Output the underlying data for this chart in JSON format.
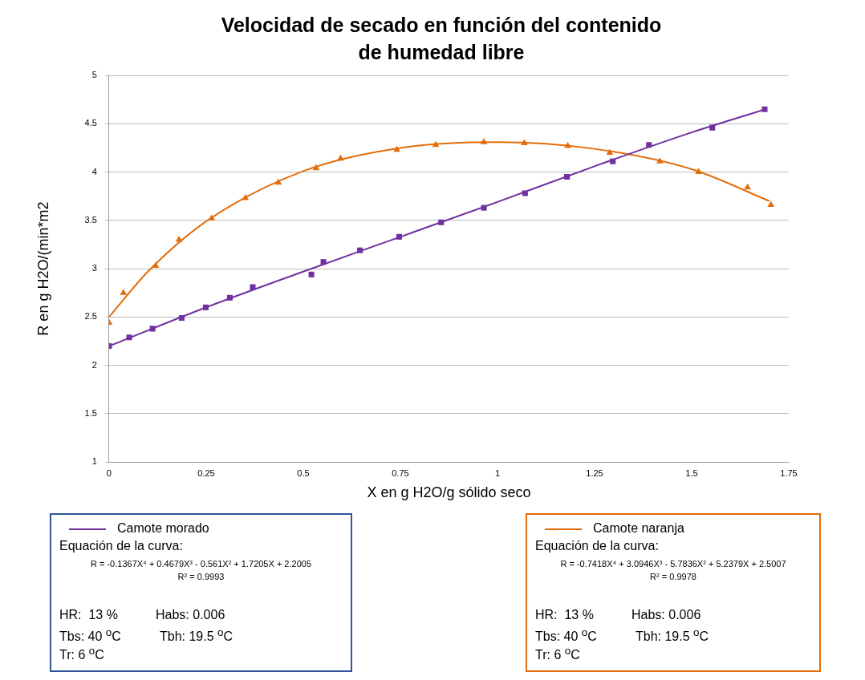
{
  "chart_data": {
    "type": "scatter",
    "title": "Velocidad de secado en función del contenido de humedad libre",
    "xlabel": "X en g H2O/g sólido seco",
    "ylabel": "R en g H2O/(min*m2",
    "xlim": [
      0,
      1.75
    ],
    "xticks": [
      0,
      0.25,
      0.5,
      0.75,
      1,
      1.25,
      1.5,
      1.75
    ],
    "ylim": [
      1,
      5
    ],
    "yticks": [
      1,
      1.5,
      2,
      2.5,
      3,
      3.5,
      4,
      4.5,
      5
    ],
    "grid": "y",
    "legend": "bottom",
    "series": [
      {
        "color": "#7030a0",
        "marker": "square",
        "x": [
          0,
          0.052,
          0.112,
          0.187,
          0.249,
          0.311,
          0.37,
          0.521,
          0.552,
          0.646,
          0.747,
          0.855,
          0.965,
          1.071,
          1.179,
          1.297,
          1.39,
          1.553,
          1.688
        ],
        "values": [
          2.2,
          2.29,
          2.38,
          2.49,
          2.6,
          2.7,
          2.81,
          2.94,
          3.07,
          3.19,
          3.33,
          3.48,
          3.63,
          3.78,
          3.95,
          4.11,
          4.28,
          4.46,
          4.65
        ]
      },
      {
        "color": "#e36c09",
        "marker": "triangle",
        "x": [
          0,
          0.037,
          0.12,
          0.18,
          0.264,
          0.351,
          0.436,
          0.533,
          0.596,
          0.741,
          0.841,
          0.965,
          1.069,
          1.181,
          1.289,
          1.418,
          1.518,
          1.644,
          1.704
        ],
        "values": [
          2.44,
          2.75,
          3.03,
          3.3,
          3.52,
          3.73,
          3.89,
          4.04,
          4.14,
          4.23,
          4.28,
          4.31,
          4.3,
          4.27,
          4.2,
          4.11,
          4.0,
          3.84,
          3.66
        ]
      },
      {
        "type": "line",
        "name": "Camote morado",
        "color": "#7030a0",
        "marker": "none",
        "x": [
          0,
          0.25,
          0.5,
          0.75,
          1,
          1.25,
          1.5,
          1.69
        ],
        "values": [
          2.2,
          2.6,
          2.97,
          3.33,
          3.69,
          4.06,
          4.41,
          4.65
        ]
      },
      {
        "type": "line",
        "name": "Camote naranja",
        "color": "#e36c09",
        "marker": "none",
        "x": [
          0,
          0.1,
          0.25,
          0.5,
          0.75,
          1,
          1.25,
          1.5,
          1.7
        ],
        "values": [
          2.5,
          2.97,
          3.49,
          4.01,
          4.25,
          4.31,
          4.24,
          4.03,
          3.7
        ]
      }
    ],
    "annotations": [
      "Equación de la curva:",
      "R = -0.1367X⁴ + 0.4679X³ - 0.561X² + 1.7205X + 2.2005",
      "R² = 0.9993",
      "HR:  13 %",
      "Habs: 0.006",
      "Tbs: 40 $^{o}$C",
      "Tbh: 19.5 $^{o}$C",
      "Tr: 6 $^{o}$C",
      "Equación de la curva:",
      "R = -0.7418X⁴ + 3.0946X³ - 5.7836X² + 5.2379X + 2.5007",
      "R² = 0.9978",
      "HR:  13 %",
      "Habs: 0.006",
      "Tbs: 40 $^{o}$C",
      "Tbh: 19.5 $^{o}$C",
      "Tr: 6 $^{o}$C"
    ]
  }
}
